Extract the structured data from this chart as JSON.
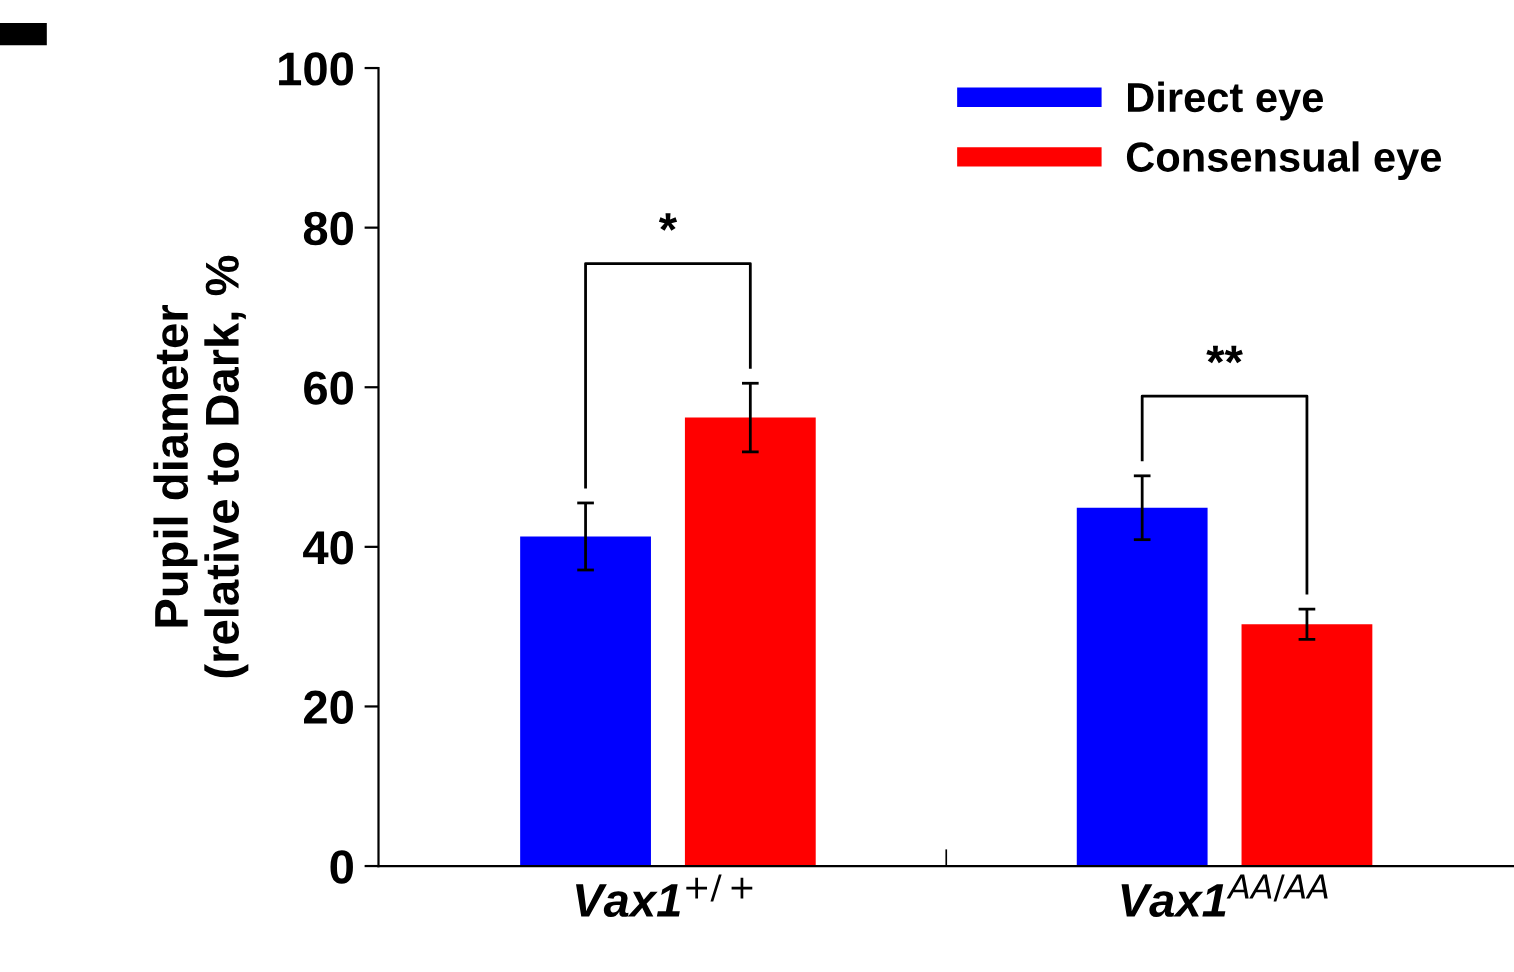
{
  "chart_data": {
    "type": "bar",
    "ylabel": "Pupil diameter\n(relative to Dark, %",
    "categories": [
      "Vax1$^{+/+}$",
      "Vax1$^{AA/AA}$"
    ],
    "series": [
      {
        "name": "Direct eye",
        "color": "#0000ff",
        "values": [
          41.3,
          44.9
        ],
        "errors": [
          4.2,
          4.0
        ]
      },
      {
        "name": "Consensual eye",
        "color": "#ff0000",
        "values": [
          56.2,
          30.3
        ],
        "errors": [
          4.3,
          1.9
        ]
      }
    ],
    "ylim": [
      0,
      100
    ],
    "yticks": [
      0,
      20,
      40,
      60,
      80,
      100
    ],
    "grid": false,
    "legend": "top right",
    "annotations": [
      "*",
      "**"
    ]
  }
}
